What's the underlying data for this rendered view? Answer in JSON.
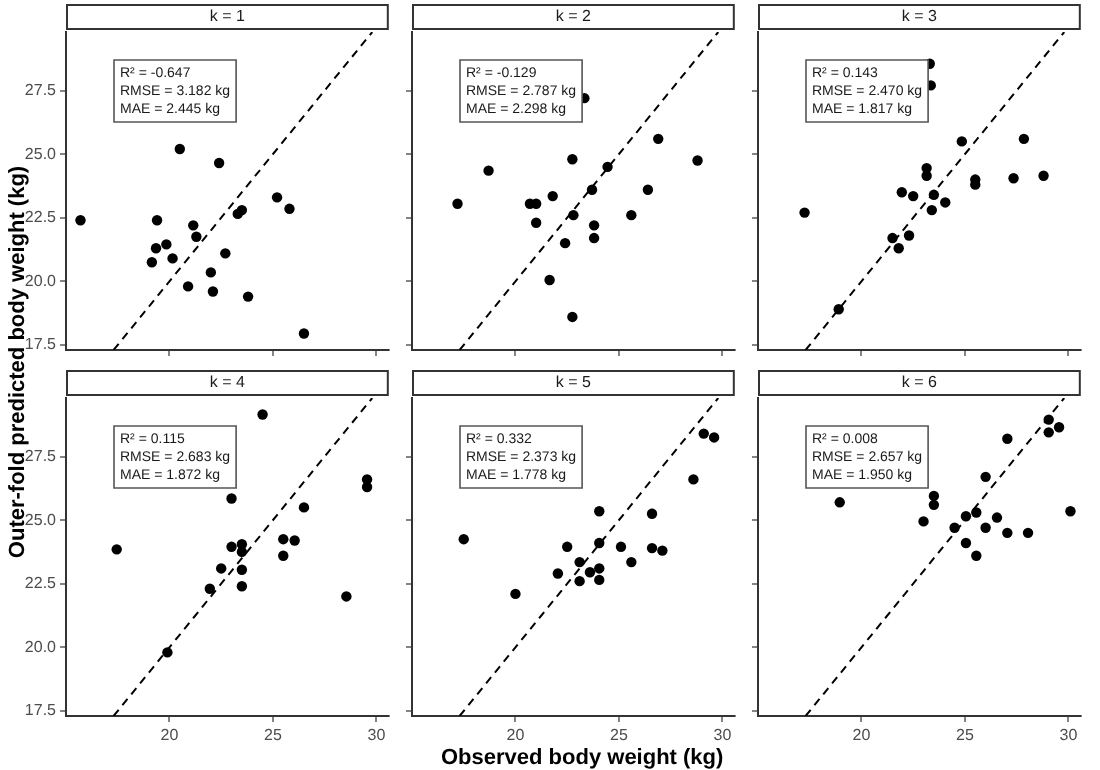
{
  "chart_data": [
    {
      "type": "scatter",
      "title": "k = 1",
      "ylabel": "Outer-fold predicted body weight (kg)",
      "annotations": [
        "R² = -0.647",
        "RMSE = 3.182 kg",
        "MAE = 2.445 kg"
      ],
      "xlim": [
        15.0,
        30.6
      ],
      "ylim": [
        17.3,
        29.8
      ],
      "xticks": [
        20,
        25,
        30
      ],
      "yticks": [
        {
          "value": 17.5,
          "label": "17.5"
        },
        {
          "value": 20,
          "label": "20.0"
        },
        {
          "value": 22.5,
          "label": "22.5"
        },
        {
          "value": 25,
          "label": "25.0"
        },
        {
          "value": 27.5,
          "label": "27.5"
        }
      ],
      "tick_labels": "y",
      "grid": false,
      "legend": false,
      "marker": "circle",
      "series": [
        {
          "type": "scatter",
          "color": "#000000",
          "x": [
            15.7,
            20.5,
            22.4,
            19.4,
            21.15,
            21.3,
            19.35,
            19.85,
            19.15,
            20.15,
            22.7,
            22.0,
            20.9,
            22.1,
            23.8,
            23.3,
            23.5,
            25.2,
            25.8,
            26.5
          ],
          "values": [
            22.4,
            25.2,
            24.65,
            22.4,
            22.2,
            21.75,
            21.3,
            21.45,
            20.75,
            20.9,
            21.1,
            20.35,
            19.8,
            19.6,
            19.4,
            22.65,
            22.8,
            23.3,
            22.85,
            17.95
          ]
        },
        {
          "type": "line",
          "color": "#000000",
          "line_style": "dashed",
          "marker": "none",
          "x": [
            17.3,
            29.8
          ],
          "values": [
            17.3,
            29.8
          ]
        }
      ]
    },
    {
      "type": "scatter",
      "title": "k = 2",
      "annotations": [
        "R² = -0.129",
        "RMSE = 2.787 kg",
        "MAE = 2.298 kg"
      ],
      "xlim": [
        15.0,
        30.6
      ],
      "ylim": [
        17.3,
        29.8
      ],
      "xticks": [
        20,
        25,
        30
      ],
      "yticks": [
        17.5,
        20,
        22.5,
        25,
        27.5
      ],
      "tick_labels": false,
      "grid": false,
      "legend": false,
      "marker": "circle",
      "series": [
        {
          "type": "scatter",
          "color": "#000000",
          "x": [
            23.33,
            26.9,
            28.8,
            22.75,
            24.45,
            18.7,
            23.7,
            26.4,
            21.8,
            17.2,
            20.7,
            21.0,
            22.8,
            25.6,
            21.0,
            23.8,
            23.8,
            22.4,
            21.65,
            22.75
          ],
          "values": [
            27.2,
            25.6,
            24.75,
            24.8,
            24.5,
            24.35,
            23.6,
            23.6,
            23.35,
            23.05,
            23.05,
            23.05,
            22.6,
            22.6,
            22.3,
            22.2,
            21.7,
            21.5,
            20.05,
            18.6
          ]
        },
        {
          "type": "line",
          "color": "#000000",
          "line_style": "dashed",
          "marker": "none",
          "x": [
            17.3,
            29.8
          ],
          "values": [
            17.3,
            29.8
          ]
        }
      ]
    },
    {
      "type": "scatter",
      "title": "k = 3",
      "annotations": [
        "R² = 0.143",
        "RMSE = 2.470 kg",
        "MAE = 1.817 kg"
      ],
      "xlim": [
        15.0,
        30.6
      ],
      "ylim": [
        17.3,
        29.8
      ],
      "xticks": [
        20,
        25,
        30
      ],
      "yticks": [
        17.5,
        20,
        22.5,
        25,
        27.5
      ],
      "tick_labels": false,
      "grid": false,
      "legend": false,
      "marker": "circle",
      "series": [
        {
          "type": "scatter",
          "color": "#000000",
          "x": [
            23.3,
            23.35,
            27.85,
            24.85,
            23.15,
            23.15,
            25.5,
            25.5,
            27.35,
            28.8,
            21.95,
            22.5,
            23.5,
            24.05,
            23.4,
            17.25,
            21.5,
            22.3,
            21.8,
            18.9
          ],
          "values": [
            28.55,
            27.7,
            25.6,
            25.5,
            24.45,
            24.15,
            24.0,
            23.8,
            24.05,
            24.15,
            23.5,
            23.35,
            23.4,
            23.1,
            22.8,
            22.7,
            21.7,
            21.8,
            21.3,
            18.9
          ]
        },
        {
          "type": "line",
          "color": "#000000",
          "line_style": "dashed",
          "marker": "none",
          "x": [
            17.3,
            29.8
          ],
          "values": [
            17.3,
            29.8
          ]
        }
      ]
    },
    {
      "type": "scatter",
      "title": "k = 4",
      "annotations": [
        "R² = 0.115",
        "RMSE = 2.683 kg",
        "MAE = 1.872 kg"
      ],
      "xlim": [
        15.0,
        30.6
      ],
      "ylim": [
        17.3,
        29.8
      ],
      "xticks": [
        20,
        25,
        30
      ],
      "yticks": [
        {
          "value": 17.5,
          "label": "17.5"
        },
        {
          "value": 20,
          "label": "20.0"
        },
        {
          "value": 22.5,
          "label": "22.5"
        },
        {
          "value": 25,
          "label": "25.0"
        },
        {
          "value": 27.5,
          "label": "27.5"
        }
      ],
      "grid": false,
      "legend": false,
      "marker": "circle",
      "series": [
        {
          "type": "scatter",
          "color": "#000000",
          "x": [
            24.5,
            29.55,
            29.55,
            26.5,
            23.0,
            17.45,
            23.0,
            23.5,
            23.5,
            25.5,
            26.05,
            25.5,
            22.5,
            23.5,
            23.5,
            21.95,
            28.55,
            19.9
          ],
          "values": [
            29.15,
            26.6,
            26.3,
            25.5,
            25.85,
            23.85,
            23.95,
            24.05,
            23.75,
            24.25,
            24.2,
            23.6,
            23.1,
            23.05,
            22.4,
            22.3,
            22.0,
            19.8
          ]
        },
        {
          "type": "line",
          "color": "#000000",
          "line_style": "dashed",
          "marker": "none",
          "x": [
            17.3,
            29.8
          ],
          "values": [
            17.3,
            29.8
          ]
        }
      ]
    },
    {
      "type": "scatter",
      "title": "k = 5",
      "xlabel": "Observed body weight (kg)",
      "annotations": [
        "R² = 0.332",
        "RMSE = 2.373 kg",
        "MAE = 1.778 kg"
      ],
      "xlim": [
        15.0,
        30.6
      ],
      "ylim": [
        17.3,
        29.8
      ],
      "xticks": [
        20,
        25,
        30
      ],
      "yticks": [
        17.5,
        20,
        22.5,
        25,
        27.5
      ],
      "tick_labels": "x",
      "grid": false,
      "legend": false,
      "marker": "circle",
      "series": [
        {
          "type": "scatter",
          "color": "#000000",
          "x": [
            29.1,
            29.6,
            28.6,
            24.05,
            26.6,
            17.5,
            22.5,
            24.05,
            25.1,
            26.6,
            27.1,
            25.6,
            23.1,
            22.05,
            23.6,
            24.05,
            23.1,
            24.05,
            20.0
          ],
          "values": [
            28.4,
            28.25,
            26.6,
            25.35,
            25.25,
            24.25,
            23.95,
            24.1,
            23.95,
            23.9,
            23.8,
            23.35,
            23.35,
            22.9,
            22.95,
            23.1,
            22.6,
            22.65,
            22.1
          ]
        },
        {
          "type": "line",
          "color": "#000000",
          "line_style": "dashed",
          "marker": "none",
          "x": [
            17.3,
            29.8
          ],
          "values": [
            17.3,
            29.8
          ]
        }
      ]
    },
    {
      "type": "scatter",
      "title": "k = 6",
      "annotations": [
        "R² = 0.008",
        "RMSE = 2.657 kg",
        "MAE = 1.950 kg"
      ],
      "xlim": [
        15.0,
        30.6
      ],
      "ylim": [
        17.3,
        29.8
      ],
      "xticks": [
        20,
        25,
        30
      ],
      "yticks": [
        17.5,
        20,
        22.5,
        25,
        27.5
      ],
      "tick_labels": "x",
      "grid": false,
      "legend": false,
      "marker": "circle",
      "series": [
        {
          "type": "scatter",
          "color": "#000000",
          "x": [
            29.05,
            29.05,
            29.55,
            27.05,
            26.0,
            18.95,
            23.5,
            23.5,
            30.1,
            23.0,
            25.05,
            25.55,
            26.55,
            24.5,
            26.0,
            27.05,
            28.05,
            25.05,
            25.55
          ],
          "values": [
            28.95,
            28.45,
            28.65,
            28.2,
            26.7,
            25.7,
            25.95,
            25.6,
            25.35,
            24.95,
            25.15,
            25.3,
            25.1,
            24.7,
            24.7,
            24.5,
            24.5,
            24.1,
            23.6
          ]
        },
        {
          "type": "line",
          "color": "#000000",
          "line_style": "dashed",
          "marker": "none",
          "x": [
            17.3,
            29.8
          ],
          "values": [
            17.3,
            29.8
          ]
        }
      ]
    }
  ]
}
